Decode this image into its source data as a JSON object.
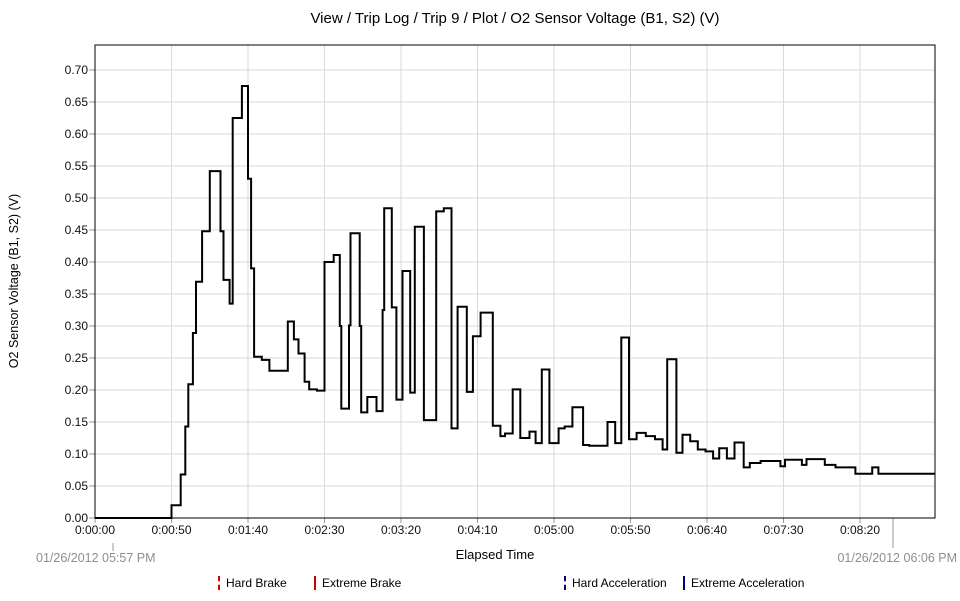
{
  "header": {
    "title": "View / Trip Log / Trip 9 / Plot / O2 Sensor Voltage (B1, S2) (V)"
  },
  "chart_data": {
    "type": "line",
    "line_style": "step-after",
    "title": "View / Trip Log / Trip 9 / Plot / O2 Sensor Voltage (B1, S2) (V)",
    "xlabel": "Elapsed Time",
    "ylabel": "O2 Sensor Voltage (B1, S2) (V)",
    "grid": true,
    "x_axis": {
      "tick_seconds": [
        0,
        50,
        100,
        150,
        200,
        250,
        300,
        350,
        400,
        450,
        500
      ],
      "tick_labels": [
        "0:00:00",
        "0:00:50",
        "0:01:40",
        "0:02:30",
        "0:03:20",
        "0:04:10",
        "0:05:00",
        "0:05:50",
        "0:06:40",
        "0:07:30",
        "0:08:20"
      ],
      "range_seconds": [
        0,
        549
      ]
    },
    "y_axis": {
      "tick_values": [
        0.0,
        0.05,
        0.1,
        0.15,
        0.2,
        0.25,
        0.3,
        0.35,
        0.4,
        0.45,
        0.5,
        0.55,
        0.6,
        0.65,
        0.7
      ],
      "range": [
        0,
        0.739
      ],
      "unit": "V"
    },
    "start_timestamp": "01/26/2012 05:57 PM",
    "end_timestamp": "01/26/2012 06:06 PM",
    "series": [
      {
        "name": "O2 Sensor Voltage (B1, S2) (V)",
        "color": "#000000",
        "points_t_v": [
          [
            0,
            0.0
          ],
          [
            50,
            0.02
          ],
          [
            56,
            0.068
          ],
          [
            59,
            0.143
          ],
          [
            61,
            0.209
          ],
          [
            64,
            0.289
          ],
          [
            66,
            0.369
          ],
          [
            70,
            0.448
          ],
          [
            75,
            0.542
          ],
          [
            82,
            0.448
          ],
          [
            84,
            0.372
          ],
          [
            88,
            0.335
          ],
          [
            90,
            0.625
          ],
          [
            96,
            0.675
          ],
          [
            100,
            0.53
          ],
          [
            102,
            0.39
          ],
          [
            104,
            0.252
          ],
          [
            109,
            0.247
          ],
          [
            114,
            0.23
          ],
          [
            126,
            0.307
          ],
          [
            130,
            0.279
          ],
          [
            133,
            0.257
          ],
          [
            137,
            0.213
          ],
          [
            140,
            0.201
          ],
          [
            145,
            0.199
          ],
          [
            150,
            0.4
          ],
          [
            156,
            0.411
          ],
          [
            160,
            0.3
          ],
          [
            161,
            0.171
          ],
          [
            166,
            0.301
          ],
          [
            167,
            0.445
          ],
          [
            173,
            0.3
          ],
          [
            174,
            0.165
          ],
          [
            178,
            0.189
          ],
          [
            184,
            0.167
          ],
          [
            188,
            0.325
          ],
          [
            189,
            0.484
          ],
          [
            194,
            0.329
          ],
          [
            197,
            0.185
          ],
          [
            201,
            0.386
          ],
          [
            206,
            0.196
          ],
          [
            209,
            0.455
          ],
          [
            215,
            0.153
          ],
          [
            223,
            0.479
          ],
          [
            228,
            0.484
          ],
          [
            233,
            0.14
          ],
          [
            237,
            0.33
          ],
          [
            243,
            0.197
          ],
          [
            247,
            0.284
          ],
          [
            252,
            0.321
          ],
          [
            260,
            0.144
          ],
          [
            265,
            0.128
          ],
          [
            268,
            0.132
          ],
          [
            273,
            0.201
          ],
          [
            278,
            0.125
          ],
          [
            284,
            0.135
          ],
          [
            288,
            0.117
          ],
          [
            292,
            0.232
          ],
          [
            297,
            0.117
          ],
          [
            303,
            0.14
          ],
          [
            307,
            0.143
          ],
          [
            312,
            0.173
          ],
          [
            319,
            0.114
          ],
          [
            323,
            0.113
          ],
          [
            335,
            0.15
          ],
          [
            340,
            0.117
          ],
          [
            344,
            0.282
          ],
          [
            349,
            0.123
          ],
          [
            354,
            0.133
          ],
          [
            360,
            0.128
          ],
          [
            366,
            0.123
          ],
          [
            371,
            0.107
          ],
          [
            374,
            0.248
          ],
          [
            380,
            0.102
          ],
          [
            384,
            0.13
          ],
          [
            389,
            0.12
          ],
          [
            394,
            0.107
          ],
          [
            399,
            0.104
          ],
          [
            404,
            0.093
          ],
          [
            408,
            0.109
          ],
          [
            413,
            0.093
          ],
          [
            418,
            0.118
          ],
          [
            424,
            0.079
          ],
          [
            428,
            0.086
          ],
          [
            435,
            0.089
          ],
          [
            448,
            0.081
          ],
          [
            451,
            0.091
          ],
          [
            462,
            0.083
          ],
          [
            465,
            0.092
          ],
          [
            477,
            0.083
          ],
          [
            484,
            0.079
          ],
          [
            497,
            0.069
          ],
          [
            508,
            0.079
          ],
          [
            512,
            0.069
          ],
          [
            549,
            0.069
          ]
        ]
      }
    ],
    "legend": [
      {
        "label": "Hard Brake",
        "color": "#cc0000",
        "style": "dashed"
      },
      {
        "label": "Extreme Brake",
        "color": "#cc0000",
        "style": "solid"
      },
      {
        "label": "Hard Acceleration",
        "color": "#000080",
        "style": "dashed"
      },
      {
        "label": "Extreme Acceleration",
        "color": "#000080",
        "style": "solid"
      }
    ],
    "colors": {
      "line": "#000000",
      "grid": "#d9d9d9",
      "axis_border": "#000000",
      "tick": "#999999",
      "timestamp_text": "#8e8e8e"
    }
  }
}
